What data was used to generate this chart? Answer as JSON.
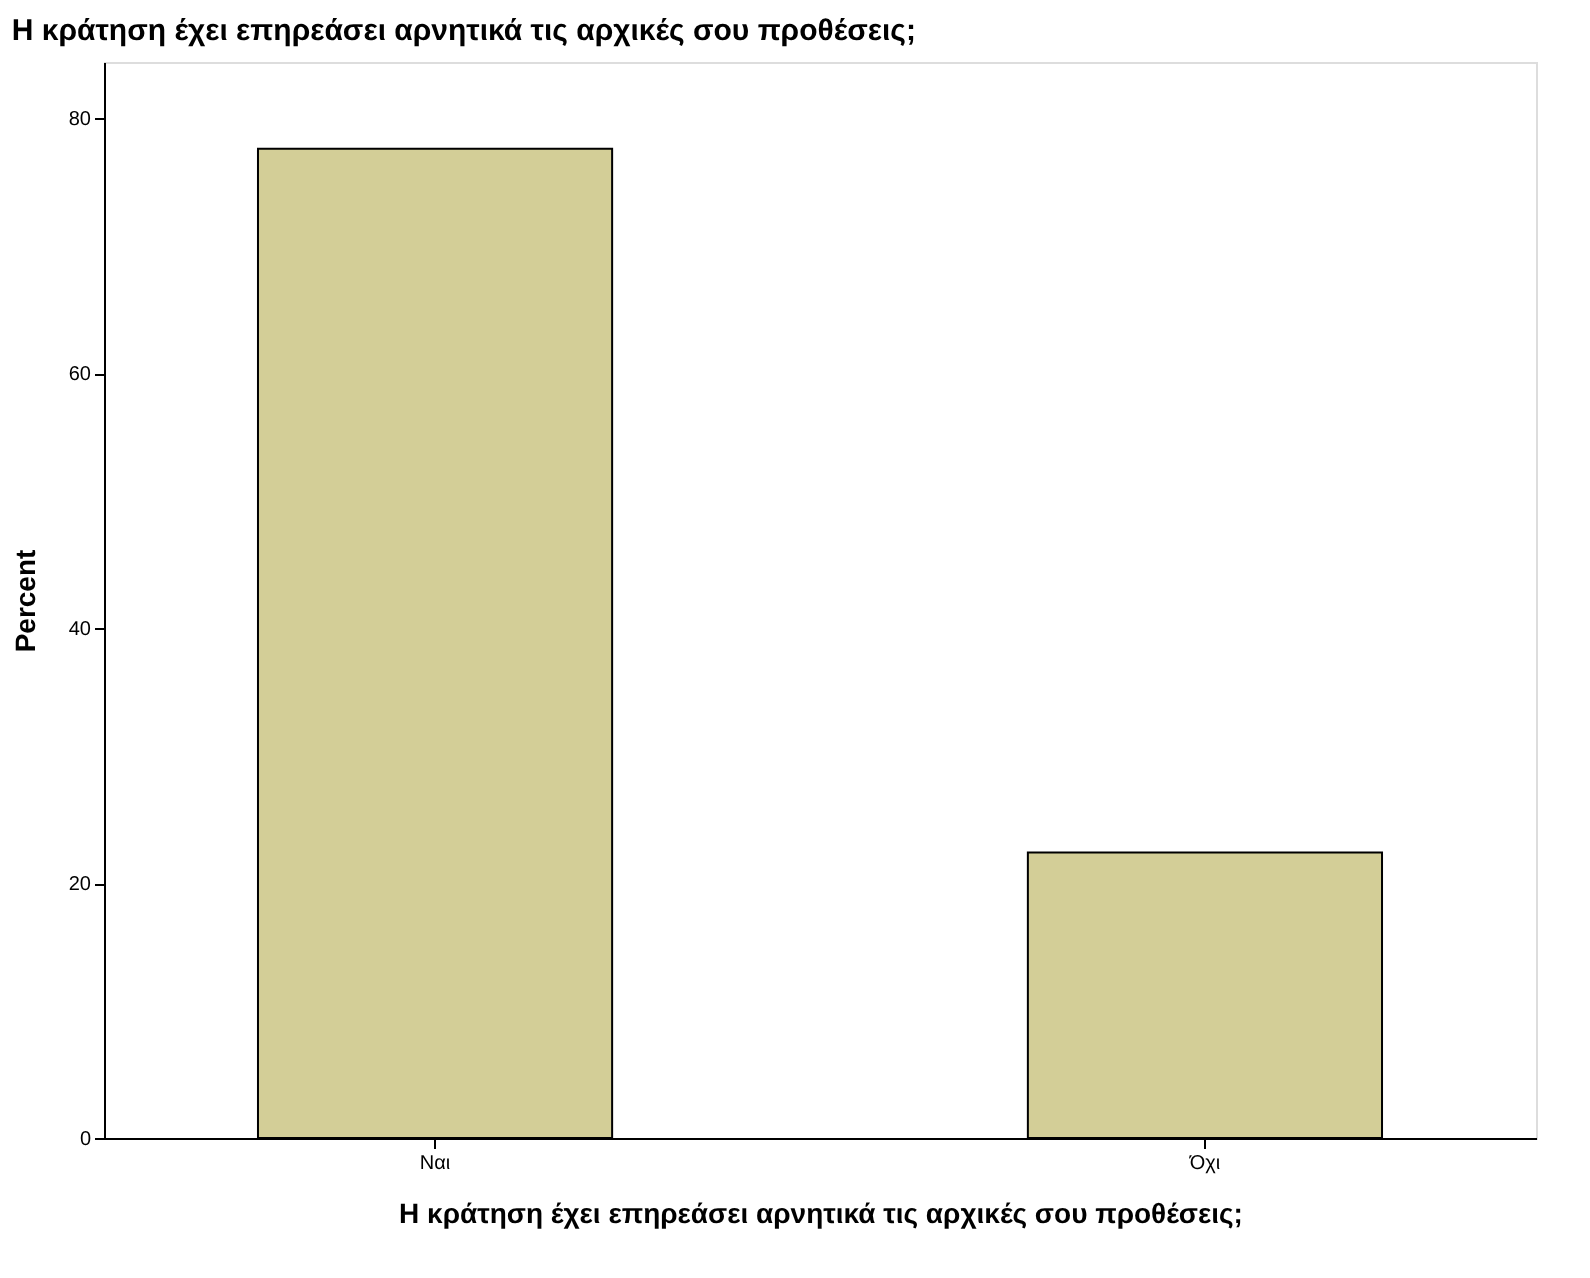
{
  "chart_data": {
    "type": "bar",
    "title": "Η κράτηση έχει επηρεάσει αρνητικά τις αρχικές σου προθέσεις;",
    "xlabel": "Η κράτηση έχει επηρεάσει αρνητικά τις αρχικές σου προθέσεις;",
    "ylabel": "Percent",
    "categories": [
      "Ναι",
      "Όχι"
    ],
    "values": [
      77.6,
      22.4
    ],
    "color": "#d3ce97",
    "ylim": [
      0,
      84.4
    ],
    "yticks": [
      0,
      20,
      40,
      60,
      80
    ]
  }
}
